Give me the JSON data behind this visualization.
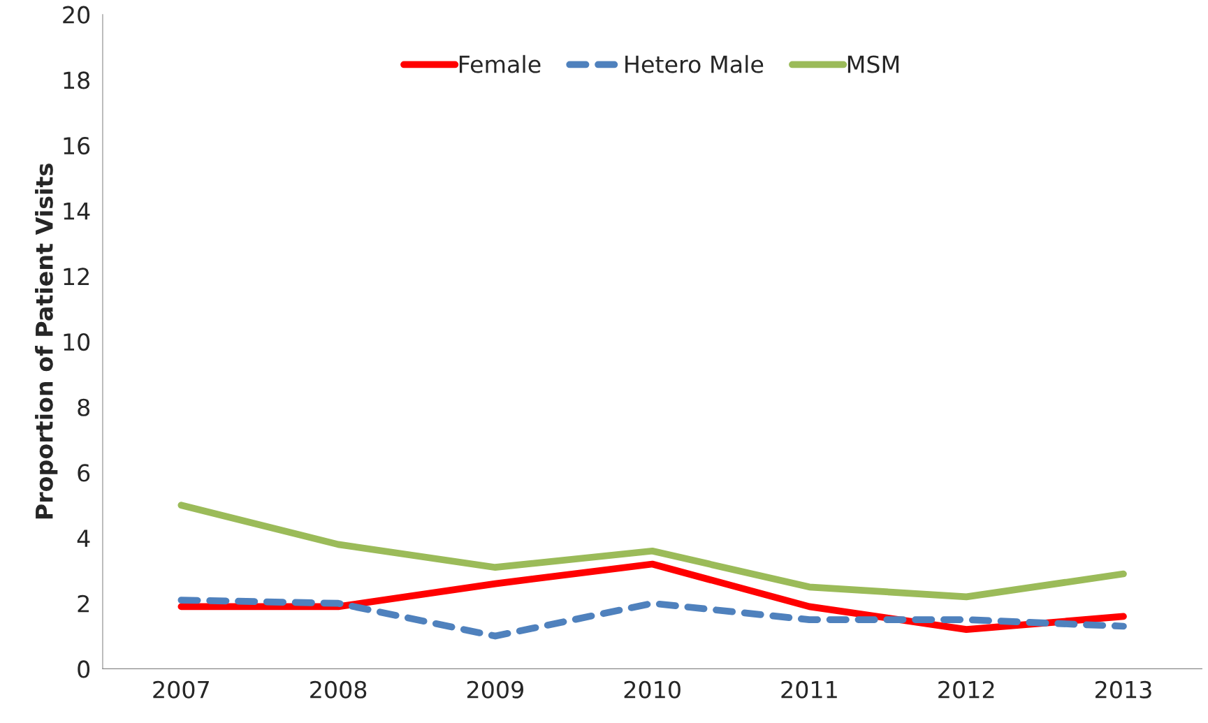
{
  "chart_data": {
    "type": "line",
    "ylabel": "Proportion of Patient Visits",
    "categories": [
      "2007",
      "2008",
      "2009",
      "2010",
      "2011",
      "2012",
      "2013"
    ],
    "series": [
      {
        "name": "Female",
        "color": "#ff0000",
        "line_style": "solid",
        "values": [
          1.9,
          1.9,
          2.6,
          3.2,
          1.9,
          1.2,
          1.6
        ]
      },
      {
        "name": "Hetero Male",
        "color": "#4f81bd",
        "line_style": "dashed",
        "values": [
          2.1,
          2.0,
          1.0,
          2.0,
          1.5,
          1.5,
          1.3
        ]
      },
      {
        "name": "MSM",
        "color": "#9bbb59",
        "line_style": "solid",
        "values": [
          5.0,
          3.8,
          3.1,
          3.6,
          2.5,
          2.2,
          2.9
        ]
      }
    ],
    "ylim": [
      0,
      20
    ],
    "yticks": [
      0,
      2,
      4,
      6,
      8,
      10,
      12,
      14,
      16,
      18,
      20
    ],
    "grid": false,
    "legend": "top",
    "marker": "none"
  }
}
